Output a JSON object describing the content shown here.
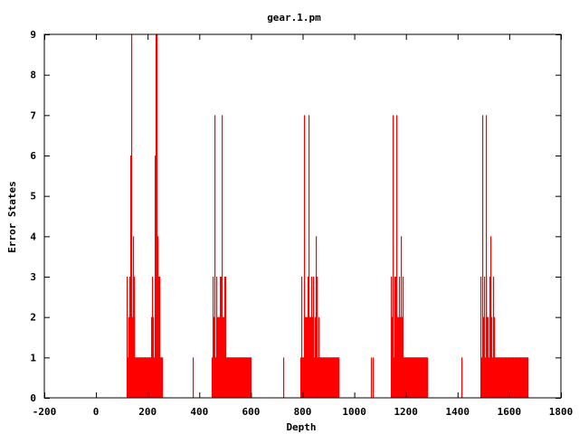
{
  "chart_data": {
    "type": "bar",
    "title": "gear.1.pm",
    "xlabel": "Depth",
    "ylabel": "Error States",
    "xlim": [
      -200,
      1800
    ],
    "ylim": [
      0,
      9
    ],
    "xticks": [
      "-200",
      "0",
      "200",
      "400",
      "600",
      "800",
      "1000",
      "1200",
      "1400",
      "1600",
      "1800"
    ],
    "yticks": [
      "0",
      "1",
      "2",
      "3",
      "4",
      "5",
      "6",
      "7",
      "8",
      "9"
    ],
    "grid": false,
    "legend": "none",
    "color": "#ff0000",
    "clusters": [
      {
        "x": [
          120,
          122,
          124,
          126,
          128,
          130,
          132,
          134,
          136,
          138,
          140,
          142,
          144,
          146,
          148,
          150,
          152,
          154,
          156,
          158,
          160,
          162,
          164,
          166,
          168,
          170,
          172,
          174,
          176,
          178,
          180,
          182,
          184,
          186,
          188,
          190,
          192,
          194,
          196,
          198,
          200,
          202,
          204,
          206,
          208,
          210,
          212,
          214,
          216,
          218,
          220,
          222,
          224,
          226,
          228,
          230,
          232,
          234,
          236,
          238,
          240,
          242,
          244,
          246,
          248,
          250,
          252,
          254,
          256
        ],
        "y": [
          3,
          1,
          2,
          1,
          3,
          2,
          3,
          6,
          3,
          9,
          2,
          4,
          1,
          3,
          2,
          1,
          1,
          1,
          1,
          1,
          1,
          1,
          1,
          1,
          1,
          1,
          1,
          1,
          1,
          1,
          1,
          1,
          1,
          1,
          1,
          1,
          1,
          1,
          1,
          1,
          1,
          1,
          1,
          1,
          1,
          1,
          2,
          1,
          3,
          2,
          1,
          2,
          1,
          3,
          6,
          9,
          4,
          9,
          9,
          4,
          3,
          2,
          1,
          3,
          1,
          1,
          1,
          1,
          1
        ]
      },
      {
        "x": [
          448,
          450,
          452,
          454,
          456,
          458,
          460,
          462,
          464,
          466,
          468,
          470,
          472,
          474,
          476,
          478,
          480,
          482,
          484,
          486,
          488,
          490,
          492,
          494,
          496,
          498,
          500,
          502,
          504,
          506,
          508,
          510,
          512,
          514,
          516,
          518,
          520,
          522,
          524,
          526,
          528,
          530,
          532,
          534,
          536,
          538,
          540,
          542,
          544,
          546,
          548,
          550,
          552,
          554,
          556,
          558,
          560,
          562,
          564,
          566,
          568,
          570,
          572,
          574,
          576,
          578,
          580,
          582,
          584,
          586,
          588,
          590,
          592,
          594,
          596,
          598
        ],
        "y": [
          1,
          3,
          1,
          1,
          2,
          1,
          7,
          1,
          2,
          3,
          2,
          1,
          2,
          1,
          2,
          3,
          1,
          2,
          3,
          7,
          1,
          2,
          1,
          2,
          3,
          1,
          3,
          1,
          1,
          1,
          1,
          1,
          1,
          1,
          1,
          1,
          1,
          1,
          1,
          1,
          1,
          1,
          1,
          1,
          1,
          1,
          1,
          1,
          1,
          1,
          1,
          1,
          1,
          1,
          1,
          1,
          1,
          1,
          1,
          1,
          1,
          1,
          1,
          1,
          1,
          1,
          1,
          1,
          1,
          1,
          1,
          1,
          1,
          1,
          1,
          1
        ]
      },
      {
        "x": [
          792,
          794,
          796,
          798,
          800,
          802,
          804,
          806,
          808,
          810,
          812,
          814,
          816,
          818,
          820,
          822,
          824,
          826,
          828,
          830,
          832,
          834,
          836,
          838,
          840,
          842,
          844,
          846,
          848,
          850,
          852,
          854,
          856,
          858,
          860,
          862,
          864,
          866,
          868,
          870,
          872,
          874,
          876,
          878,
          880,
          882,
          884,
          886,
          888,
          890,
          892,
          894,
          896,
          898,
          900,
          902,
          904,
          906,
          908,
          910,
          912,
          914,
          916,
          918,
          920,
          922,
          924,
          926,
          928,
          930,
          932,
          934,
          936,
          938
        ],
        "y": [
          1,
          3,
          1,
          1,
          1,
          1,
          2,
          7,
          2,
          1,
          2,
          1,
          2,
          3,
          2,
          7,
          1,
          2,
          1,
          2,
          3,
          1,
          2,
          1,
          3,
          2,
          1,
          2,
          1,
          4,
          1,
          3,
          1,
          1,
          2,
          1,
          1,
          1,
          1,
          1,
          1,
          1,
          1,
          1,
          1,
          1,
          1,
          1,
          1,
          1,
          1,
          1,
          1,
          1,
          1,
          1,
          1,
          1,
          1,
          1,
          1,
          1,
          1,
          1,
          1,
          1,
          1,
          1,
          1,
          1,
          1,
          1,
          1,
          1
        ]
      },
      {
        "x": [
          1140,
          1142,
          1144,
          1146,
          1148,
          1150,
          1152,
          1154,
          1156,
          1158,
          1160,
          1162,
          1164,
          1166,
          1168,
          1170,
          1172,
          1174,
          1176,
          1178,
          1180,
          1182,
          1184,
          1186,
          1188,
          1190,
          1192,
          1194,
          1196,
          1198,
          1200,
          1202,
          1204,
          1206,
          1208,
          1210,
          1212,
          1214,
          1216,
          1218,
          1220,
          1222,
          1224,
          1226,
          1228,
          1230,
          1232,
          1234,
          1236,
          1238,
          1240,
          1242,
          1244,
          1246,
          1248,
          1250,
          1252,
          1254,
          1256,
          1258,
          1260,
          1262,
          1264,
          1266,
          1268,
          1270,
          1272,
          1274,
          1276,
          1278,
          1280
        ],
        "y": [
          1,
          3,
          1,
          2,
          7,
          2,
          1,
          3,
          2,
          1,
          3,
          7,
          1,
          2,
          1,
          2,
          1,
          3,
          2,
          1,
          4,
          1,
          2,
          1,
          3,
          1,
          1,
          1,
          1,
          1,
          1,
          1,
          1,
          1,
          1,
          1,
          1,
          1,
          1,
          1,
          1,
          1,
          1,
          1,
          1,
          1,
          1,
          1,
          1,
          1,
          1,
          1,
          1,
          1,
          1,
          1,
          1,
          1,
          1,
          1,
          1,
          1,
          1,
          1,
          1,
          1,
          1,
          1,
          1,
          1,
          1
        ]
      },
      {
        "x": [
          1488,
          1490,
          1492,
          1494,
          1496,
          1498,
          1500,
          1502,
          1504,
          1506,
          1508,
          1510,
          1512,
          1514,
          1516,
          1518,
          1520,
          1522,
          1524,
          1526,
          1528,
          1530,
          1532,
          1534,
          1536,
          1538,
          1540,
          1542,
          1544,
          1546,
          1548,
          1550,
          1552,
          1554,
          1556,
          1558,
          1560,
          1562,
          1564,
          1566,
          1568,
          1570,
          1572,
          1574,
          1576,
          1578,
          1580,
          1582,
          1584,
          1586,
          1588,
          1590,
          1592,
          1594,
          1596,
          1598,
          1600,
          1602,
          1604,
          1606,
          1608,
          1610,
          1612,
          1614,
          1616,
          1618,
          1620,
          1622,
          1624,
          1626,
          1628,
          1630,
          1632,
          1634,
          1636,
          1638,
          1640,
          1642,
          1644,
          1646,
          1648,
          1650,
          1652,
          1654,
          1656,
          1658,
          1660,
          1662,
          1664,
          1666,
          1668,
          1670
        ],
        "y": [
          1,
          3,
          1,
          2,
          7,
          2,
          1,
          3,
          2,
          1,
          3,
          7,
          1,
          2,
          1,
          2,
          1,
          3,
          2,
          1,
          4,
          1,
          2,
          1,
          3,
          1,
          2,
          1,
          1,
          1,
          1,
          1,
          1,
          1,
          1,
          1,
          1,
          1,
          1,
          1,
          1,
          1,
          1,
          1,
          1,
          1,
          1,
          1,
          1,
          1,
          1,
          1,
          1,
          1,
          1,
          1,
          1,
          1,
          1,
          1,
          1,
          1,
          1,
          1,
          1,
          1,
          1,
          1,
          1,
          1,
          1,
          1,
          1,
          1,
          1,
          1,
          1,
          1,
          1,
          1,
          1,
          1,
          1,
          1,
          1,
          1,
          1,
          1,
          1,
          1,
          1,
          1
        ]
      },
      {
        "x": [
          375,
          726,
          1066,
          1070,
          1416
        ],
        "y": [
          1,
          1,
          1,
          1,
          1
        ]
      }
    ]
  }
}
